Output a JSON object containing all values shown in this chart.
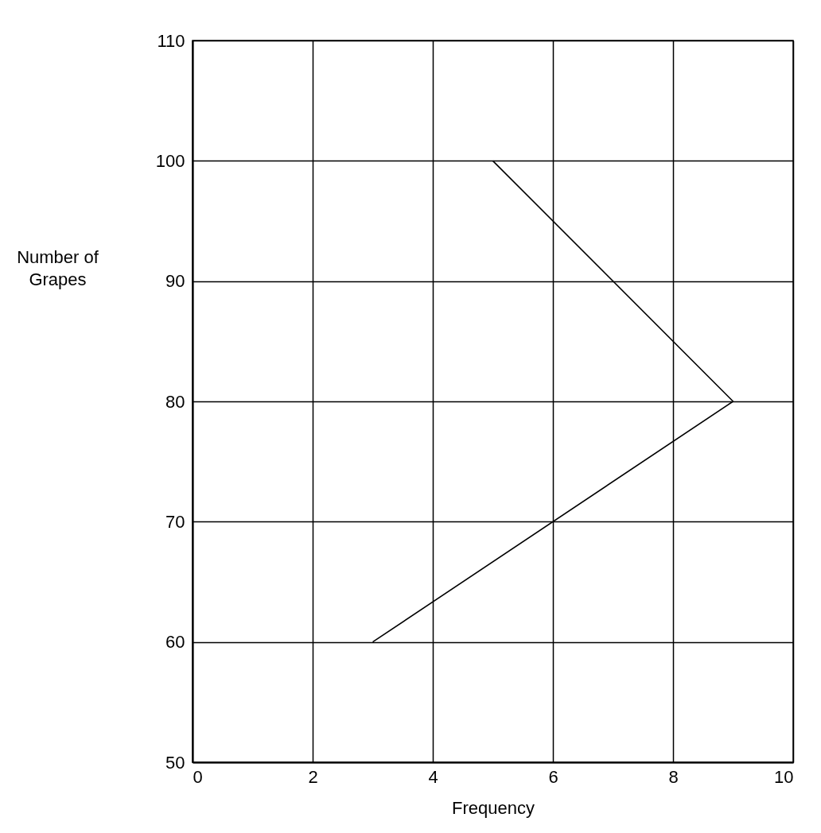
{
  "chart_data": {
    "type": "line",
    "xlabel": "Frequency",
    "ylabel": "Number of Grapes",
    "x": [
      3,
      9,
      5
    ],
    "values": [
      60,
      80,
      100
    ],
    "color": "#000000",
    "xlim": [
      0,
      10
    ],
    "xticks": [
      0,
      2,
      4,
      6,
      8,
      10
    ],
    "ylim": [
      50,
      110
    ],
    "yticks": [
      50,
      60,
      70,
      80,
      90,
      100,
      110
    ],
    "grid": true,
    "marker": "none",
    "line_style": "solid"
  }
}
